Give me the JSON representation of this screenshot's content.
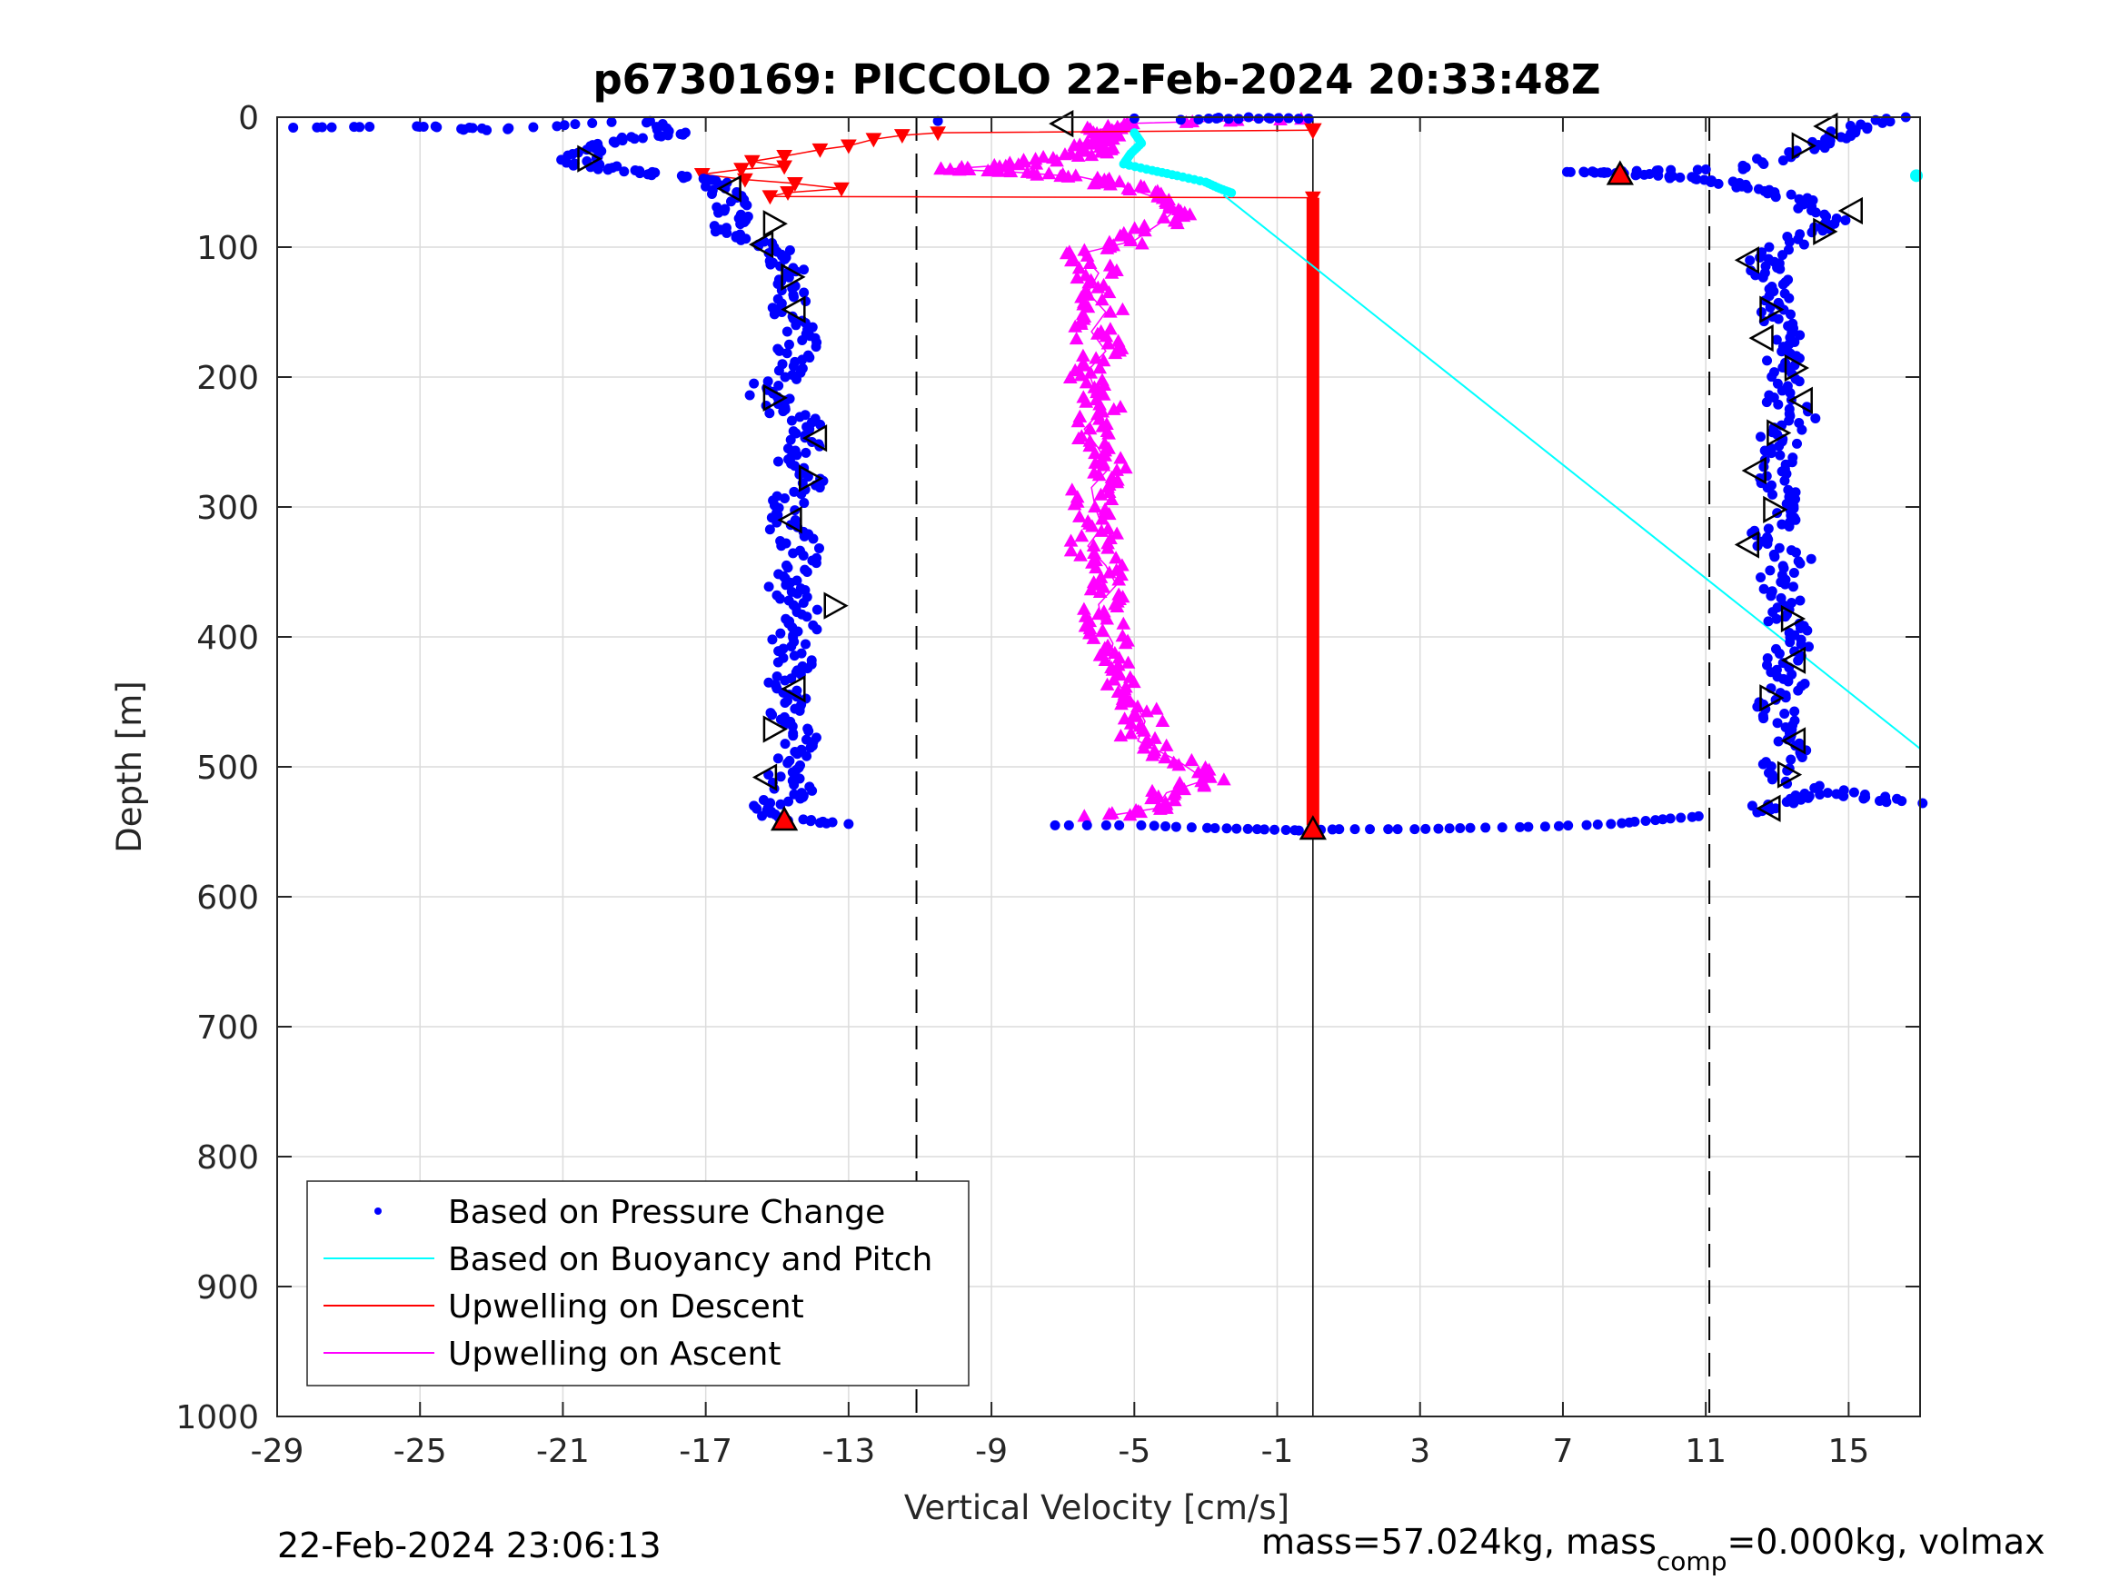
{
  "chart_data": {
    "type": "scatter",
    "title": "p6730169: PICCOLO 22-Feb-2024 20:33:48Z",
    "xlabel": "Vertical Velocity [cm/s]",
    "ylabel": "Depth [m]",
    "xlim": [
      -29,
      17
    ],
    "ylim": [
      0,
      1000
    ],
    "y_reversed": true,
    "xticks": [
      -29,
      -25,
      -21,
      -17,
      -13,
      -9,
      -5,
      -1,
      3,
      7,
      11,
      15
    ],
    "yticks": [
      0,
      100,
      200,
      300,
      400,
      500,
      600,
      700,
      800,
      900,
      1000
    ],
    "grid": true,
    "legend_position": "bottom-left",
    "reference_lines": {
      "dashed_x": [
        -11.1,
        11.1
      ],
      "solid_x": [
        0
      ]
    },
    "series": [
      {
        "name": "Based on Pressure Change",
        "style": "dots",
        "color": "#0000ff",
        "descent_points": [
          [
            -28.8,
            8
          ],
          [
            -24.6,
            7
          ],
          [
            -23.1,
            10
          ],
          [
            -18.7,
            3
          ],
          [
            -18.0,
            13
          ],
          [
            -19.3,
            17
          ],
          [
            -20.0,
            25
          ],
          [
            -20.7,
            35
          ],
          [
            -19.5,
            40
          ],
          [
            -18.4,
            44
          ],
          [
            -17.0,
            49
          ],
          [
            -16.3,
            62
          ],
          [
            -16.1,
            75
          ],
          [
            -16.6,
            88
          ],
          [
            -15.3,
            98
          ],
          [
            -14.9,
            108
          ],
          [
            -14.6,
            120
          ],
          [
            -14.4,
            135
          ],
          [
            -14.8,
            150
          ],
          [
            -14.3,
            165
          ],
          [
            -14.5,
            180
          ],
          [
            -14.6,
            195
          ],
          [
            -15.4,
            210
          ],
          [
            -15.0,
            222
          ],
          [
            -14.3,
            235
          ],
          [
            -14.1,
            250
          ],
          [
            -14.5,
            265
          ],
          [
            -14.2,
            280
          ],
          [
            -14.6,
            295
          ],
          [
            -14.8,
            312
          ],
          [
            -14.4,
            328
          ],
          [
            -14.2,
            345
          ],
          [
            -14.9,
            360
          ],
          [
            -14.5,
            372
          ],
          [
            -14.3,
            388
          ],
          [
            -14.6,
            402
          ],
          [
            -14.4,
            418
          ],
          [
            -14.8,
            432
          ],
          [
            -14.3,
            446
          ],
          [
            -14.9,
            460
          ],
          [
            -14.4,
            476
          ],
          [
            -14.6,
            490
          ],
          [
            -14.7,
            506
          ],
          [
            -14.5,
            520
          ],
          [
            -15.2,
            530
          ],
          [
            -14.8,
            540
          ],
          [
            -13.0,
            544
          ]
        ],
        "bottom_points": [
          [
            -7.2,
            545
          ],
          [
            -4.9,
            545
          ],
          [
            -3.0,
            547
          ],
          [
            -1.5,
            548
          ],
          [
            -0.3,
            549
          ],
          [
            0.7,
            548
          ],
          [
            2.9,
            548
          ],
          [
            4.5,
            547
          ],
          [
            6.5,
            546
          ],
          [
            8.3,
            544
          ],
          [
            9.6,
            541
          ],
          [
            10.8,
            538
          ]
        ],
        "ascent_points": [
          [
            12.3,
            535
          ],
          [
            13.2,
            526
          ],
          [
            14.4,
            520
          ],
          [
            16.8,
            528
          ],
          [
            13.4,
            513
          ],
          [
            13.1,
            498
          ],
          [
            13.5,
            482
          ],
          [
            13.2,
            468
          ],
          [
            12.9,
            452
          ],
          [
            13.4,
            436
          ],
          [
            13.1,
            420
          ],
          [
            13.6,
            404
          ],
          [
            13.2,
            388
          ],
          [
            13.3,
            372
          ],
          [
            12.9,
            356
          ],
          [
            13.5,
            340
          ],
          [
            12.5,
            325
          ],
          [
            13.1,
            310
          ],
          [
            13.3,
            294
          ],
          [
            12.8,
            278
          ],
          [
            13.2,
            262
          ],
          [
            13.0,
            246
          ],
          [
            13.7,
            230
          ],
          [
            12.9,
            214
          ],
          [
            13.4,
            198
          ],
          [
            13.1,
            182
          ],
          [
            13.2,
            166
          ],
          [
            12.9,
            150
          ],
          [
            13.3,
            134
          ],
          [
            12.7,
            118
          ],
          [
            12.5,
            108
          ],
          [
            13.9,
            90
          ],
          [
            14.5,
            78
          ],
          [
            13.7,
            64
          ],
          [
            12.6,
            56
          ],
          [
            11.5,
            50
          ],
          [
            10.2,
            46
          ],
          [
            8.6,
            43
          ],
          [
            7.2,
            42
          ],
          [
            11.8,
            40
          ],
          [
            13.4,
            28
          ],
          [
            14.4,
            18
          ],
          [
            15.0,
            10
          ],
          [
            16.6,
            0
          ]
        ],
        "surface_points": [
          [
            -10.5,
            3
          ],
          [
            -5.0,
            1
          ],
          [
            -2.7,
            1
          ],
          [
            -1.2,
            1
          ],
          [
            -3.7,
            2
          ]
        ]
      },
      {
        "name": "Based on Buoyancy and Pitch",
        "style": "line",
        "color": "#00ffff",
        "line_points": [
          [
            -2.5,
            60
          ],
          [
            17,
            486
          ]
        ],
        "points": [
          [
            -5.0,
            12
          ],
          [
            -4.8,
            20
          ],
          [
            -5.1,
            28
          ],
          [
            -5.3,
            36
          ],
          [
            -4.5,
            41
          ],
          [
            -3.8,
            45
          ],
          [
            -3.0,
            50
          ],
          [
            -2.6,
            55
          ],
          [
            -2.2,
            59
          ],
          [
            17,
            45
          ]
        ]
      },
      {
        "name": "Upwelling on Descent",
        "style": "line+triangle-down",
        "color": "#ff0000",
        "points": [
          [
            0,
            10
          ],
          [
            -10.5,
            12
          ],
          [
            -11.5,
            14
          ],
          [
            -12.3,
            17
          ],
          [
            -13.0,
            22
          ],
          [
            -13.8,
            25
          ],
          [
            -14.8,
            30
          ],
          [
            -15.7,
            34
          ],
          [
            -14.8,
            38
          ],
          [
            -16.0,
            40
          ],
          [
            -17.1,
            44
          ],
          [
            -15.9,
            48
          ],
          [
            -14.5,
            51
          ],
          [
            -13.2,
            55
          ],
          [
            -14.7,
            58
          ],
          [
            -15.2,
            61
          ],
          [
            0,
            62
          ]
        ],
        "vertical_bar": {
          "x": 0,
          "y_from": 62,
          "y_to": 545
        }
      },
      {
        "name": "Upwelling on Ascent",
        "style": "line+triangle-up",
        "color": "#ff00ff",
        "points": [
          [
            -5.8,
            538
          ],
          [
            -4.4,
            532
          ],
          [
            -4.1,
            520
          ],
          [
            -3.0,
            510
          ],
          [
            -3.8,
            495
          ],
          [
            -4.9,
            480
          ],
          [
            -4.7,
            465
          ],
          [
            -5.0,
            450
          ],
          [
            -5.5,
            435
          ],
          [
            -5.7,
            420
          ],
          [
            -5.6,
            405
          ],
          [
            -5.9,
            390
          ],
          [
            -6.0,
            375
          ],
          [
            -5.5,
            360
          ],
          [
            -5.8,
            345
          ],
          [
            -6.3,
            330
          ],
          [
            -5.9,
            315
          ],
          [
            -6.1,
            300
          ],
          [
            -6.2,
            285
          ],
          [
            -5.7,
            270
          ],
          [
            -6.0,
            255
          ],
          [
            -6.4,
            240
          ],
          [
            -5.9,
            225
          ],
          [
            -6.1,
            210
          ],
          [
            -6.3,
            195
          ],
          [
            -5.8,
            180
          ],
          [
            -6.2,
            165
          ],
          [
            -5.8,
            150
          ],
          [
            -6.3,
            135
          ],
          [
            -6.0,
            120
          ],
          [
            -6.5,
            105
          ],
          [
            -5.0,
            95
          ],
          [
            -4.2,
            80
          ],
          [
            -3.8,
            70
          ],
          [
            -4.6,
            60
          ],
          [
            -5.5,
            52
          ],
          [
            -6.5,
            46
          ],
          [
            -8.5,
            42
          ],
          [
            -10.3,
            40
          ],
          [
            -8.2,
            36
          ],
          [
            -6.8,
            30
          ],
          [
            -5.8,
            25
          ],
          [
            -6.5,
            20
          ],
          [
            -5.5,
            15
          ],
          [
            -6.0,
            10
          ],
          [
            -5.4,
            5
          ],
          [
            0,
            1
          ]
        ]
      }
    ],
    "markers": {
      "color": "#000000",
      "descent_pressure_markers": [
        [
          -20.3,
          32
        ],
        [
          -16.3,
          55
        ],
        [
          -15.1,
          82
        ],
        [
          -15.4,
          98
        ],
        [
          -14.6,
          123
        ],
        [
          -14.5,
          148
        ],
        [
          -15.1,
          216
        ],
        [
          -13.9,
          247
        ],
        [
          -14.1,
          278
        ],
        [
          -14.6,
          310
        ],
        [
          -13.4,
          376
        ],
        [
          -14.5,
          440
        ],
        [
          -15.1,
          471
        ],
        [
          -15.3,
          508
        ]
      ],
      "ascent_pressure_markers": [
        [
          14.4,
          7
        ],
        [
          13.7,
          22
        ],
        [
          15.1,
          72
        ],
        [
          14.3,
          88
        ],
        [
          12.2,
          110
        ],
        [
          12.8,
          148
        ],
        [
          12.6,
          170
        ],
        [
          13.5,
          193
        ],
        [
          13.7,
          218
        ],
        [
          13.0,
          243
        ],
        [
          12.4,
          272
        ],
        [
          12.9,
          302
        ],
        [
          12.2,
          329
        ],
        [
          13.4,
          386
        ],
        [
          13.5,
          418
        ],
        [
          12.8,
          447
        ],
        [
          13.5,
          480
        ],
        [
          13.3,
          506
        ],
        [
          12.8,
          532
        ]
      ],
      "surface_marker": [
        -7.0,
        5
      ],
      "bottom_red_triangles": [
        [
          -14.8,
          541
        ],
        [
          0,
          548
        ],
        [
          8.6,
          44
        ]
      ],
      "red_end_marker": [
        0,
        10
      ]
    }
  },
  "footer": {
    "timestamp": "22-Feb-2024 23:06:13",
    "mass_prefix": "mass=57.024kg, mass",
    "mass_subscript": "comp",
    "mass_suffix": "=0.000kg, volmax"
  }
}
